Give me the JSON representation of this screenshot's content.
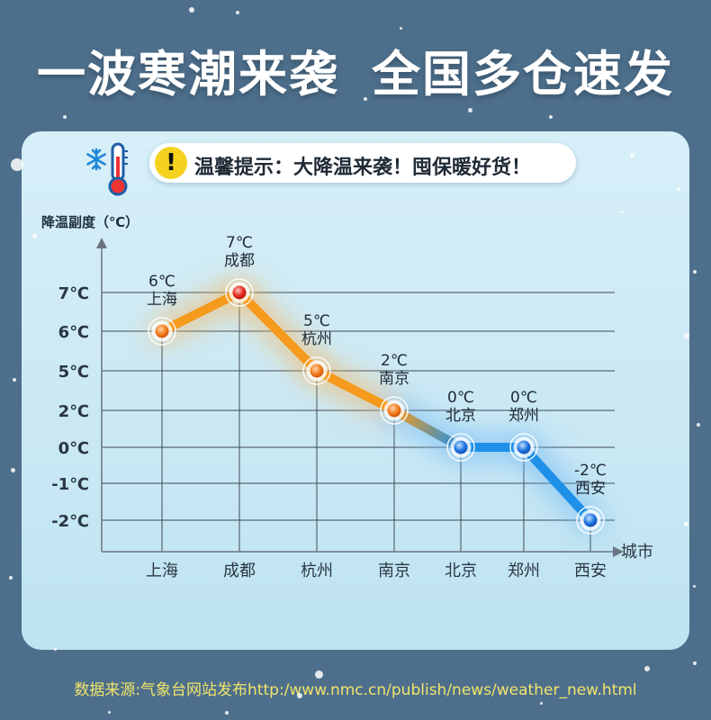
{
  "headline": {
    "part1": "一波寒潮来袭",
    "part2": "全国多仓速发"
  },
  "tip": {
    "icon": "exclamation-icon",
    "text": "温馨提示：大降温来袭！囤保暖好货！"
  },
  "icons": {
    "thermometer": "snowflake-thermometer-icon"
  },
  "colors": {
    "background": "#4d6f8c",
    "warm": "#f59a1c",
    "cold": "#1e90e8",
    "source_text": "#f0e46a"
  },
  "chart_data": {
    "type": "line",
    "ylabel": "降温副度（℃）",
    "xlabel": "城市",
    "categories": [
      "上海",
      "成都",
      "杭州",
      "南京",
      "北京",
      "郑州",
      "西安"
    ],
    "y_ticks": [
      "7℃",
      "6℃",
      "5℃",
      "2℃",
      "0℃",
      "-1℃",
      "-2℃"
    ],
    "series": [
      {
        "values": [
          6,
          7,
          5,
          2,
          0,
          0,
          -2
        ]
      }
    ],
    "point_labels": [
      {
        "temp": "6℃",
        "city": "上海"
      },
      {
        "temp": "7℃",
        "city": "成都"
      },
      {
        "temp": "5℃",
        "city": "杭州"
      },
      {
        "temp": "2℃",
        "city": "南京"
      },
      {
        "temp": "0℃",
        "city": "北京"
      },
      {
        "temp": "0℃",
        "city": "郑州"
      },
      {
        "temp": "-2℃",
        "city": "西安"
      }
    ],
    "grid": true
  },
  "source": {
    "text": "数据来源:气象台网站发布http:/www.nmc.cn/publish/news/weather_new.html"
  }
}
